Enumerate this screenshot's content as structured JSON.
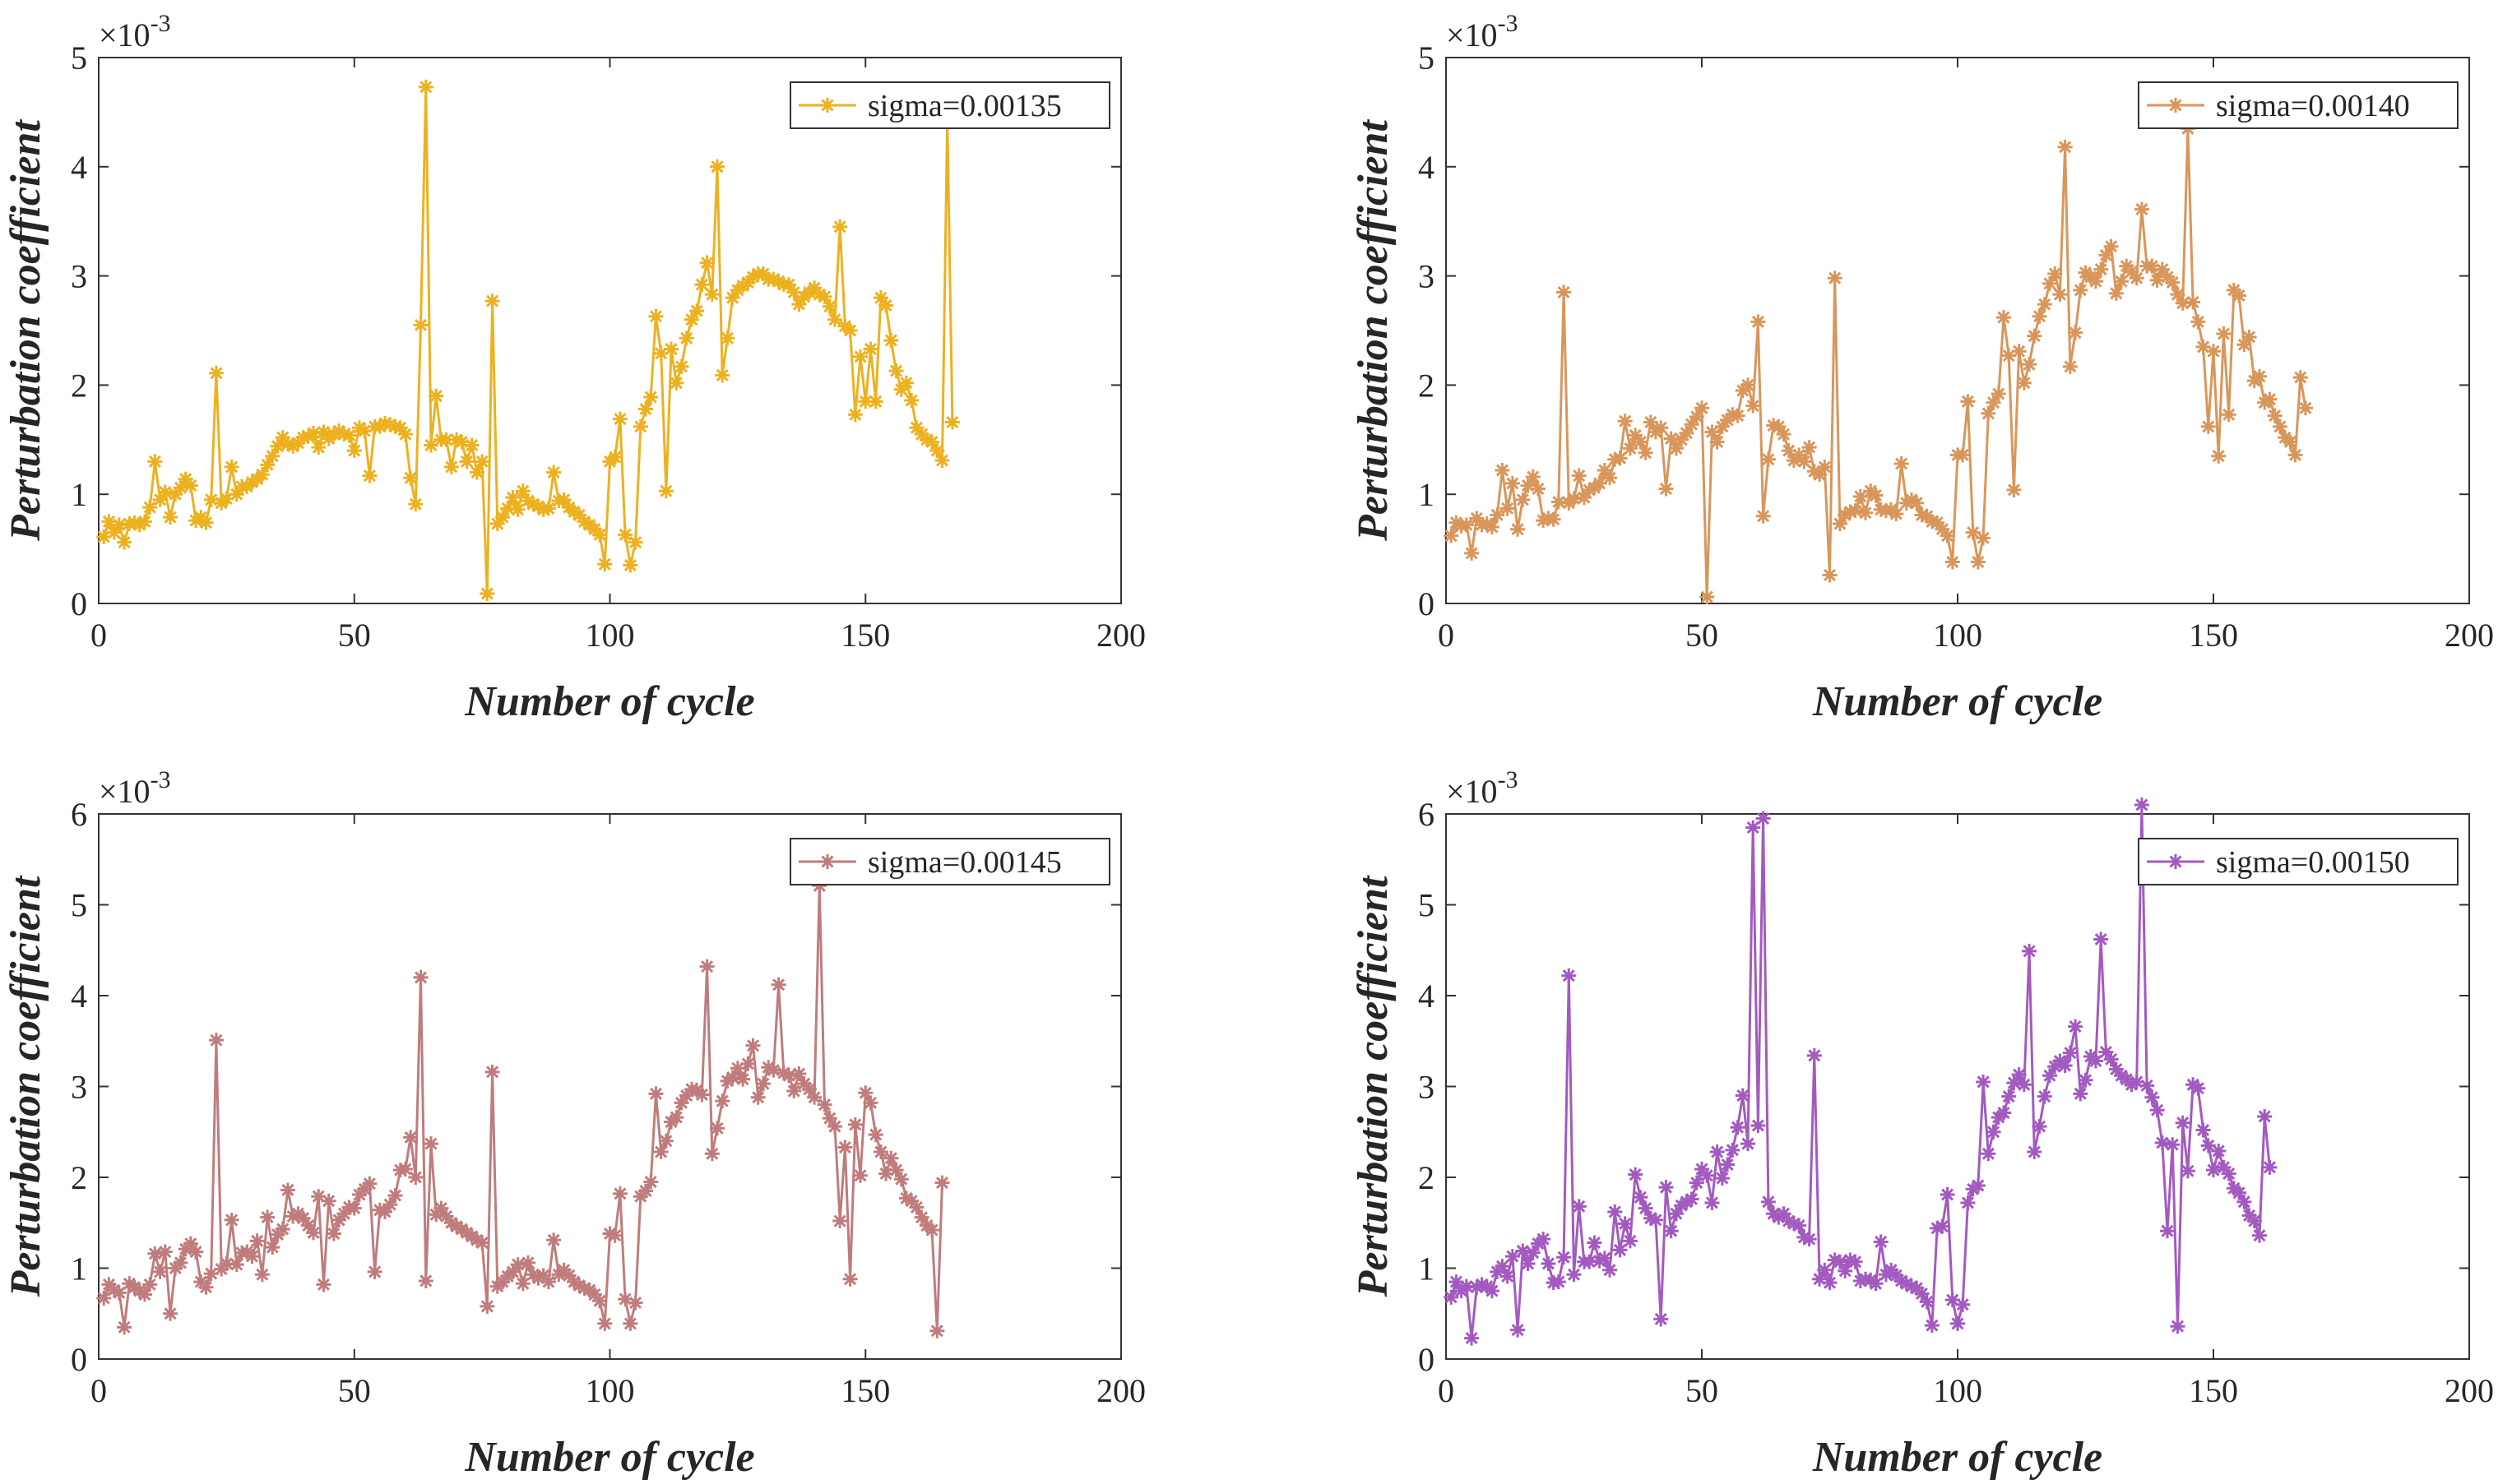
{
  "figure": {
    "accent_color": "#333333"
  },
  "chart_data": [
    {
      "type": "line",
      "xlabel": "Number of cycle",
      "ylabel": "Perturbation coefficient",
      "xlim": [
        0,
        200
      ],
      "ylim": [
        0,
        5
      ],
      "x_ticks": [
        "0",
        "50",
        "100",
        "150",
        "200"
      ],
      "y_ticks": [
        "0",
        "1",
        "2",
        "3",
        "4",
        "5"
      ],
      "y_exponent": "×10-3",
      "y_exponent_base": "×10",
      "y_exponent_power": "-3",
      "legend_position": "top-right",
      "series": [
        {
          "name": "sigma=0.00135",
          "color": "#EDB120",
          "marker": "asterisk",
          "x_start": 1,
          "values": [
            0.61,
            0.75,
            0.65,
            0.72,
            0.56,
            0.73,
            0.74,
            0.72,
            0.75,
            0.88,
            1.3,
            0.95,
            1.02,
            0.79,
            1.0,
            1.06,
            1.14,
            1.08,
            0.76,
            0.79,
            0.74,
            0.95,
            2.11,
            0.92,
            0.96,
            1.25,
            1.0,
            1.07,
            1.07,
            1.11,
            1.14,
            1.18,
            1.27,
            1.35,
            1.44,
            1.52,
            1.46,
            1.44,
            1.47,
            1.52,
            1.53,
            1.56,
            1.43,
            1.57,
            1.51,
            1.55,
            1.58,
            1.55,
            1.54,
            1.4,
            1.61,
            1.58,
            1.17,
            1.62,
            1.62,
            1.65,
            1.64,
            1.62,
            1.61,
            1.55,
            1.15,
            0.91,
            2.55,
            4.73,
            1.45,
            1.9,
            1.5,
            1.5,
            1.25,
            1.5,
            1.48,
            1.3,
            1.45,
            1.2,
            1.3,
            0.09,
            2.77,
            0.73,
            0.79,
            0.87,
            0.97,
            0.86,
            1.03,
            0.94,
            0.91,
            0.89,
            0.86,
            0.87,
            1.2,
            0.94,
            0.95,
            0.88,
            0.84,
            0.81,
            0.75,
            0.72,
            0.68,
            0.63,
            0.36,
            1.3,
            1.34,
            1.69,
            0.63,
            0.35,
            0.56,
            1.62,
            1.78,
            1.89,
            2.63,
            2.29,
            1.03,
            2.33,
            2.02,
            2.17,
            2.43,
            2.6,
            2.68,
            2.92,
            3.12,
            2.83,
            4.0,
            2.09,
            2.43,
            2.8,
            2.87,
            2.91,
            2.94,
            2.99,
            3.02,
            3.02,
            2.97,
            2.97,
            2.95,
            2.92,
            2.92,
            2.85,
            2.74,
            2.81,
            2.85,
            2.89,
            2.83,
            2.81,
            2.72,
            2.6,
            3.45,
            2.54,
            2.5,
            1.73,
            2.26,
            1.85,
            2.33,
            1.85,
            2.8,
            2.73,
            2.41,
            2.13,
            1.96,
            2.02,
            1.86,
            1.61,
            1.55,
            1.5,
            1.48,
            1.4,
            1.31,
            4.43,
            1.66
          ]
        }
      ]
    },
    {
      "type": "line",
      "xlabel": "Number of cycle",
      "ylabel": "Perturbation coefficient",
      "xlim": [
        0,
        200
      ],
      "ylim": [
        0,
        5
      ],
      "x_ticks": [
        "0",
        "50",
        "100",
        "150",
        "200"
      ],
      "y_ticks": [
        "0",
        "1",
        "2",
        "3",
        "4",
        "5"
      ],
      "y_exponent": "×10-3",
      "y_exponent_base": "×10",
      "y_exponent_power": "-3",
      "legend_position": "top-right",
      "series": [
        {
          "name": "sigma=0.00140",
          "color": "#D9965B",
          "marker": "asterisk",
          "x_start": 1,
          "values": [
            0.62,
            0.74,
            0.71,
            0.72,
            0.46,
            0.78,
            0.72,
            0.73,
            0.7,
            0.81,
            1.22,
            0.87,
            1.1,
            0.68,
            0.95,
            1.08,
            1.16,
            1.05,
            0.76,
            0.78,
            0.77,
            0.93,
            2.85,
            0.92,
            0.96,
            1.17,
            0.97,
            1.04,
            1.06,
            1.1,
            1.22,
            1.15,
            1.32,
            1.33,
            1.67,
            1.42,
            1.54,
            1.48,
            1.38,
            1.66,
            1.57,
            1.61,
            1.05,
            1.51,
            1.42,
            1.5,
            1.56,
            1.64,
            1.71,
            1.79,
            0.06,
            1.57,
            1.48,
            1.62,
            1.68,
            1.73,
            1.72,
            1.95,
            2.0,
            1.81,
            2.58,
            0.8,
            1.32,
            1.63,
            1.62,
            1.55,
            1.4,
            1.31,
            1.36,
            1.3,
            1.43,
            1.21,
            1.18,
            1.25,
            0.26,
            2.98,
            0.73,
            0.81,
            0.84,
            0.85,
            0.98,
            0.83,
            1.03,
            0.99,
            0.86,
            0.85,
            0.86,
            0.82,
            1.28,
            0.92,
            0.95,
            0.92,
            0.81,
            0.8,
            0.75,
            0.74,
            0.68,
            0.62,
            0.38,
            1.36,
            1.36,
            1.85,
            0.65,
            0.38,
            0.6,
            1.74,
            1.84,
            1.92,
            2.62,
            2.27,
            1.04,
            2.31,
            2.02,
            2.19,
            2.45,
            2.63,
            2.74,
            2.93,
            3.02,
            2.83,
            4.18,
            2.17,
            2.48,
            2.87,
            3.03,
            2.99,
            2.95,
            3.06,
            3.19,
            3.27,
            2.84,
            2.95,
            3.09,
            3.04,
            2.98,
            3.61,
            3.09,
            3.09,
            2.96,
            3.06,
            2.99,
            2.94,
            2.83,
            2.75,
            4.35,
            2.76,
            2.58,
            2.35,
            1.62,
            2.31,
            1.35,
            2.47,
            1.73,
            2.87,
            2.82,
            2.37,
            2.44,
            2.04,
            2.08,
            1.84,
            1.87,
            1.72,
            1.62,
            1.52,
            1.48,
            1.36,
            2.07,
            1.79
          ]
        }
      ]
    },
    {
      "type": "line",
      "xlabel": "Number of cycle",
      "ylabel": "Perturbation coefficient",
      "xlim": [
        0,
        200
      ],
      "ylim": [
        0,
        6
      ],
      "x_ticks": [
        "0",
        "50",
        "100",
        "150",
        "200"
      ],
      "y_ticks": [
        "0",
        "1",
        "2",
        "3",
        "4",
        "5",
        "6"
      ],
      "y_exponent": "×10-3",
      "y_exponent_base": "×10",
      "y_exponent_power": "-3",
      "legend_position": "top-right",
      "series": [
        {
          "name": "sigma=0.00145",
          "color": "#C07C7C",
          "marker": "asterisk",
          "x_start": 1,
          "values": [
            0.67,
            0.82,
            0.76,
            0.73,
            0.35,
            0.83,
            0.79,
            0.75,
            0.71,
            0.82,
            1.16,
            0.96,
            1.18,
            0.5,
            1.0,
            1.06,
            1.21,
            1.27,
            1.18,
            0.85,
            0.79,
            0.94,
            3.51,
            0.99,
            1.05,
            1.53,
            1.04,
            1.17,
            1.18,
            1.13,
            1.3,
            0.93,
            1.56,
            1.23,
            1.37,
            1.43,
            1.86,
            1.57,
            1.6,
            1.55,
            1.47,
            1.39,
            1.79,
            0.82,
            1.74,
            1.38,
            1.53,
            1.6,
            1.67,
            1.66,
            1.81,
            1.87,
            1.93,
            0.96,
            1.64,
            1.62,
            1.7,
            1.8,
            2.08,
            2.09,
            2.44,
            2.0,
            4.2,
            0.86,
            2.37,
            1.59,
            1.66,
            1.57,
            1.5,
            1.46,
            1.43,
            1.39,
            1.35,
            1.31,
            1.28,
            0.58,
            3.16,
            0.8,
            0.85,
            0.91,
            0.96,
            1.04,
            0.83,
            1.06,
            0.93,
            0.89,
            0.92,
            0.85,
            1.31,
            0.93,
            0.98,
            0.92,
            0.85,
            0.81,
            0.78,
            0.76,
            0.71,
            0.64,
            0.39,
            1.38,
            1.36,
            1.82,
            0.66,
            0.39,
            0.62,
            1.79,
            1.85,
            1.95,
            2.92,
            2.28,
            2.4,
            2.61,
            2.66,
            2.82,
            2.9,
            2.97,
            2.96,
            2.91,
            4.32,
            2.26,
            2.54,
            2.84,
            3.06,
            3.1,
            3.2,
            3.08,
            3.25,
            3.45,
            2.88,
            3.03,
            3.21,
            3.18,
            4.12,
            3.15,
            3.12,
            2.95,
            3.14,
            3.03,
            2.97,
            2.88,
            5.21,
            2.8,
            2.65,
            2.56,
            1.52,
            2.33,
            0.88,
            2.58,
            2.02,
            2.93,
            2.82,
            2.47,
            2.28,
            2.04,
            2.21,
            2.08,
            1.98,
            1.77,
            1.74,
            1.67,
            1.56,
            1.47,
            1.42,
            0.31,
            1.94
          ]
        }
      ]
    },
    {
      "type": "line",
      "xlabel": "Number of cycle",
      "ylabel": "Perturbation coefficient",
      "xlim": [
        0,
        200
      ],
      "ylim": [
        0,
        6
      ],
      "x_ticks": [
        "0",
        "50",
        "100",
        "150",
        "200"
      ],
      "y_ticks": [
        "0",
        "1",
        "2",
        "3",
        "4",
        "5",
        "6"
      ],
      "y_exponent": "×10-3",
      "y_exponent_base": "×10",
      "y_exponent_power": "-3",
      "legend_position": "top-right",
      "series": [
        {
          "name": "sigma=0.00150",
          "color": "#A35AC0",
          "marker": "asterisk",
          "x_start": 1,
          "values": [
            0.68,
            0.85,
            0.75,
            0.8,
            0.23,
            0.79,
            0.82,
            0.8,
            0.75,
            0.96,
            1.02,
            0.91,
            1.13,
            0.32,
            1.19,
            1.05,
            1.17,
            1.27,
            1.32,
            1.05,
            0.84,
            0.85,
            1.12,
            4.22,
            0.93,
            1.68,
            1.07,
            1.07,
            1.28,
            1.08,
            1.11,
            0.98,
            1.62,
            1.2,
            1.49,
            1.3,
            2.03,
            1.78,
            1.66,
            1.55,
            1.53,
            0.44,
            1.89,
            1.41,
            1.6,
            1.69,
            1.73,
            1.76,
            1.94,
            2.09,
            2.02,
            1.72,
            2.28,
            1.99,
            2.14,
            2.3,
            2.55,
            2.9,
            2.37,
            5.85,
            2.57,
            5.95,
            1.73,
            1.6,
            1.56,
            1.6,
            1.52,
            1.49,
            1.47,
            1.34,
            1.32,
            3.34,
            0.88,
            0.98,
            0.84,
            1.09,
            1.07,
            0.97,
            1.09,
            1.07,
            0.86,
            0.88,
            0.87,
            0.83,
            1.29,
            0.93,
            0.98,
            0.92,
            0.86,
            0.83,
            0.8,
            0.78,
            0.72,
            0.63,
            0.37,
            1.44,
            1.46,
            1.81,
            0.65,
            0.39,
            0.6,
            1.72,
            1.87,
            1.91,
            3.05,
            2.26,
            2.5,
            2.66,
            2.71,
            2.89,
            3.04,
            3.13,
            3.02,
            4.49,
            2.28,
            2.56,
            2.89,
            3.12,
            3.22,
            3.28,
            3.23,
            3.37,
            3.66,
            2.92,
            3.07,
            3.33,
            3.28,
            4.62,
            3.38,
            3.3,
            3.19,
            3.12,
            3.08,
            3.02,
            3.05,
            6.1,
            3.01,
            2.88,
            2.74,
            2.38,
            1.41,
            2.36,
            0.36,
            2.6,
            2.07,
            3.02,
            2.98,
            2.52,
            2.35,
            2.08,
            2.29,
            2.11,
            2.04,
            1.88,
            1.83,
            1.73,
            1.58,
            1.52,
            1.36,
            2.67,
            2.11
          ]
        }
      ]
    }
  ]
}
